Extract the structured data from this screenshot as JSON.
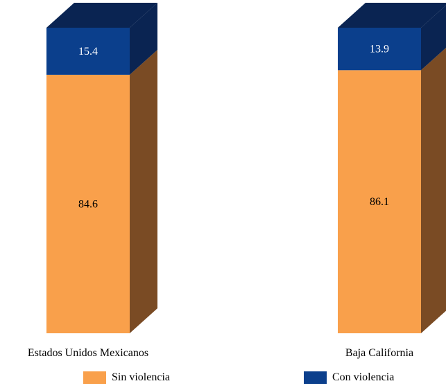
{
  "chart_data": {
    "type": "bar",
    "stacked": true,
    "three_d": true,
    "categories": [
      "Estados Unidos Mexicanos",
      "Baja California"
    ],
    "series": [
      {
        "name": "Sin violencia",
        "values": [
          84.6,
          86.1
        ],
        "color": "#F9A04B",
        "side_color": "#7A4B24",
        "label_color": "#000000"
      },
      {
        "name": "Con violencia",
        "values": [
          15.4,
          13.9
        ],
        "color": "#0B3F8C",
        "side_color": "#0A2452",
        "label_color": "#FFFFFF"
      }
    ],
    "ylim": [
      0,
      100
    ],
    "grid": false,
    "legend_position": "bottom"
  }
}
